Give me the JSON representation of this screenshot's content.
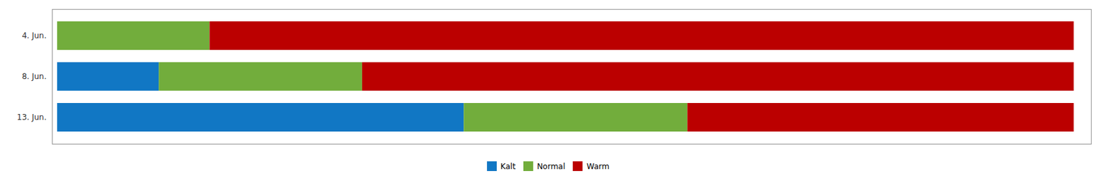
{
  "chart_data": {
    "type": "bar",
    "orientation": "horizontal",
    "stacked": true,
    "categories": [
      "4. Jun.",
      "8. Jun.",
      "13. Jun."
    ],
    "series": [
      {
        "name": "Kalt",
        "color": "#1177C4",
        "values": [
          0,
          0.1,
          0.4
        ]
      },
      {
        "name": "Normal",
        "color": "#72AD3C",
        "values": [
          0.15,
          0.2,
          0.22
        ]
      },
      {
        "name": "Warm",
        "color": "#BB0000",
        "values": [
          0.85,
          0.7,
          0.38
        ]
      }
    ],
    "xlim": [
      -0.005,
      1.017
    ],
    "xticks": [],
    "tick_labels": "y",
    "grid": false,
    "legend": "bottom"
  }
}
